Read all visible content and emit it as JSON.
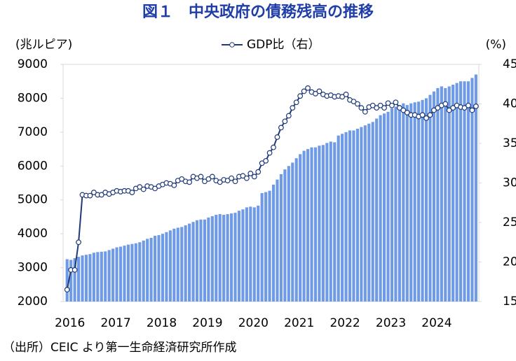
{
  "chart_data": {
    "type": "bar-line",
    "title": "図１　中央政府の債務残高の推移",
    "y_label": "(兆ルピア)",
    "y2_label": "(%)",
    "source": "（出所）CEIC より第一生命経済研究所作成",
    "categories": [
      "2016",
      null,
      null,
      null,
      null,
      null,
      null,
      null,
      null,
      null,
      null,
      null,
      "2017",
      null,
      null,
      null,
      null,
      null,
      null,
      null,
      null,
      null,
      null,
      null,
      "2018",
      null,
      null,
      null,
      null,
      null,
      null,
      null,
      null,
      null,
      null,
      null,
      "2019",
      null,
      null,
      null,
      null,
      null,
      null,
      null,
      null,
      null,
      null,
      null,
      "2020",
      null,
      null,
      null,
      null,
      null,
      null,
      null,
      null,
      null,
      null,
      null,
      "2021",
      null,
      null,
      null,
      null,
      null,
      null,
      null,
      null,
      null,
      null,
      null,
      "2022",
      null,
      null,
      null,
      null,
      null,
      null,
      null,
      null,
      null,
      null,
      null,
      "2023",
      null,
      null,
      null,
      null,
      null,
      null,
      null,
      null,
      null,
      null,
      null,
      "2024",
      null,
      null,
      null,
      null,
      null,
      null,
      null,
      null,
      null,
      null,
      null
    ],
    "series": [
      {
        "type": "bar",
        "color": "#6f9ae6",
        "values": [
          3250,
          3230,
          3280,
          3320,
          3360,
          3380,
          3400,
          3440,
          3460,
          3470,
          3480,
          3520,
          3560,
          3600,
          3620,
          3650,
          3680,
          3700,
          3720,
          3750,
          3800,
          3850,
          3880,
          3940,
          3960,
          4000,
          4050,
          4100,
          4150,
          4180,
          4200,
          4250,
          4300,
          4350,
          4400,
          4420,
          4420,
          4480,
          4520,
          4560,
          4580,
          4560,
          4580,
          4600,
          4620,
          4680,
          4720,
          4780,
          4800,
          4780,
          4830,
          5200,
          5230,
          5270,
          5450,
          5600,
          5760,
          5900,
          6000,
          6100,
          6230,
          6350,
          6450,
          6500,
          6550,
          6550,
          6600,
          6620,
          6680,
          6720,
          6700,
          6900,
          6950,
          7000,
          7050,
          7050,
          7100,
          7150,
          7200,
          7250,
          7300,
          7400,
          7500,
          7550,
          7600,
          7700,
          7750,
          7800,
          7850,
          7800,
          7850,
          7880,
          7900,
          7950,
          8000,
          8100,
          8200,
          8300,
          8350,
          8300,
          8350,
          8400,
          8450,
          8500,
          8500,
          8500,
          8600,
          8700
        ]
      },
      {
        "type": "line",
        "name": "GDP比（右）",
        "axis": "y2",
        "color": "#1f3a78",
        "values": [
          16.5,
          19,
          19,
          22.5,
          28.5,
          28.4,
          28.4,
          28.8,
          28.5,
          28.5,
          28.8,
          28.6,
          28.8,
          29,
          28.9,
          29,
          29,
          28.8,
          29.3,
          29.5,
          29.2,
          29.6,
          29.5,
          29.3,
          29.6,
          29.8,
          30,
          29.9,
          29.7,
          30.3,
          30.5,
          30.2,
          30.1,
          30.8,
          30.6,
          30.8,
          30.2,
          30.5,
          30.8,
          30.3,
          30.1,
          30.4,
          30.3,
          30.6,
          30.2,
          30.8,
          30.9,
          30.6,
          31.2,
          30.8,
          31.4,
          32.5,
          32.8,
          33.8,
          34.5,
          35.8,
          37,
          37.8,
          38.5,
          39.5,
          40.2,
          41,
          41.6,
          42,
          41.5,
          41.3,
          41.6,
          41.2,
          41,
          41.1,
          40.9,
          41,
          40.9,
          41.2,
          40.5,
          40.3,
          40,
          39.5,
          39,
          39.6,
          39.8,
          39.5,
          39.8,
          39.5,
          40.1,
          39.8,
          40.2,
          39.5,
          39.2,
          38.9,
          38.6,
          38.6,
          38.4,
          38.6,
          38.2,
          38.6,
          39.2,
          39.5,
          39.8,
          40,
          39.2,
          39.5,
          39.8,
          39.6,
          39.5,
          39.8,
          39.2,
          39.7
        ]
      }
    ],
    "ylim": [
      2000,
      9000
    ],
    "yticks": [
      2000,
      3000,
      4000,
      5000,
      6000,
      7000,
      8000,
      9000
    ],
    "y2lim": [
      15,
      45
    ],
    "y2ticks": [
      15,
      20,
      25,
      30,
      35,
      40,
      45
    ]
  }
}
